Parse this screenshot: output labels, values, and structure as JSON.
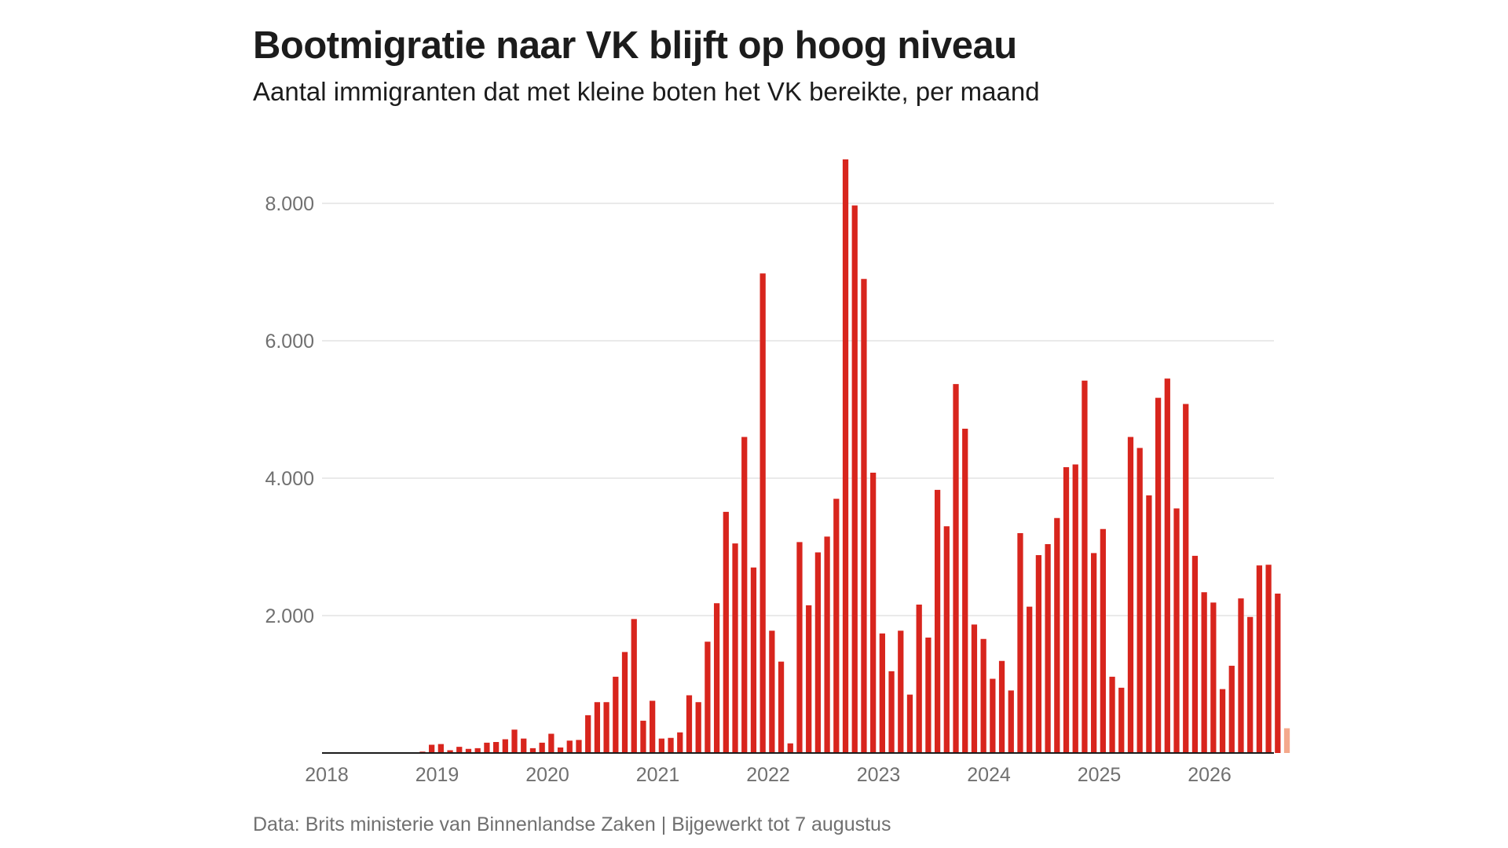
{
  "title": "Bootmigratie naar VK blijft op hoog niveau",
  "subtitle": "Aantal immigranten dat met kleine boten het VK bereikte, per maand",
  "source": "Data: Brits ministerie van Binnenlandse Zaken | Bijgewerkt tot 7 augustus",
  "colors": {
    "bar": "#d8251d",
    "bar_partial": "#f4a98c",
    "grid": "#d4d4d4",
    "axis": "#1c1c1c",
    "text_muted": "#707070"
  },
  "chart_data": {
    "type": "bar",
    "title": "Bootmigratie naar VK blijft op hoog niveau",
    "subtitle": "Aantal immigranten dat met kleine boten het VK bereikte, per maand",
    "xlabel": "",
    "ylabel": "",
    "ylim": [
      0,
      8700
    ],
    "y_ticks": [
      2000,
      4000,
      6000,
      8000
    ],
    "y_tick_labels": [
      "2.000",
      "4.000",
      "6.000",
      "8.000"
    ],
    "grid": "horizontal",
    "x_tick_labels": [
      "2018",
      "2019",
      "2020",
      "2021",
      "2022",
      "2023",
      "2024",
      "2025",
      "2026"
    ],
    "start_month": "2018-01",
    "values": [
      0,
      0,
      0,
      0,
      0,
      0,
      0,
      0,
      0,
      0,
      20,
      120,
      130,
      40,
      90,
      60,
      70,
      150,
      160,
      200,
      340,
      210,
      70,
      150,
      280,
      80,
      180,
      190,
      550,
      740,
      740,
      1110,
      1470,
      1950,
      470,
      760,
      210,
      220,
      300,
      840,
      740,
      1620,
      2180,
      3510,
      3050,
      4600,
      2700,
      6980,
      1780,
      1330,
      140,
      3070,
      2150,
      2920,
      3150,
      3700,
      8640,
      7970,
      6900,
      4080,
      1740,
      1190,
      1780,
      850,
      2160,
      1680,
      3830,
      3300,
      5370,
      4720,
      1870,
      1660,
      1080,
      1340,
      910,
      3200,
      2130,
      2880,
      3040,
      3420,
      4160,
      4200,
      5420,
      2910,
      3260,
      1110,
      950,
      4600,
      4440,
      3750,
      5170,
      5450,
      3560,
      5080,
      2870,
      2340,
      2190,
      930,
      1270,
      2250,
      1980,
      2730,
      2740,
      2320,
      360
    ],
    "partial_last_month": true
  }
}
